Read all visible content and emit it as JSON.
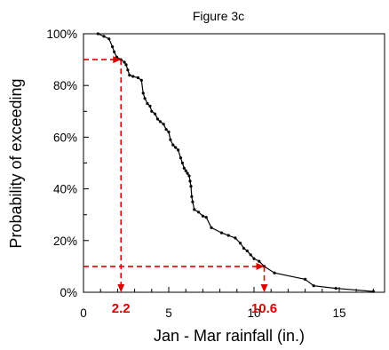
{
  "chart_data": {
    "type": "line",
    "title": "Figure 3c",
    "xlabel": "Jan - Mar rainfall (in.)",
    "ylabel": "Probability of exceeding",
    "xlim": [
      0,
      18
    ],
    "ylim": [
      0,
      100
    ],
    "x_ticks": [
      "0",
      "5",
      "10",
      "15"
    ],
    "y_ticks": [
      "0%",
      "20%",
      "40%",
      "60%",
      "80%",
      "100%"
    ],
    "grid": false,
    "series": [
      {
        "values": [
          [
            0.85,
            100
          ],
          [
            1.2,
            99
          ],
          [
            1.5,
            98
          ],
          [
            1.7,
            95
          ],
          [
            1.8,
            93
          ],
          [
            1.95,
            91
          ],
          [
            2.2,
            90
          ],
          [
            2.4,
            89
          ],
          [
            2.5,
            88
          ],
          [
            2.6,
            86
          ],
          [
            2.7,
            84
          ],
          [
            2.9,
            83.5
          ],
          [
            3.2,
            83
          ],
          [
            3.4,
            82
          ],
          [
            3.5,
            77
          ],
          [
            3.6,
            75
          ],
          [
            3.75,
            73
          ],
          [
            3.9,
            72
          ],
          [
            4.0,
            70
          ],
          [
            4.2,
            69
          ],
          [
            4.35,
            67
          ],
          [
            4.5,
            66
          ],
          [
            4.7,
            65
          ],
          [
            4.85,
            63
          ],
          [
            5.0,
            62
          ],
          [
            5.1,
            59
          ],
          [
            5.25,
            57
          ],
          [
            5.4,
            56
          ],
          [
            5.55,
            55
          ],
          [
            5.7,
            52
          ],
          [
            5.8,
            50
          ],
          [
            5.9,
            48
          ],
          [
            6.0,
            47
          ],
          [
            6.1,
            46
          ],
          [
            6.2,
            45
          ],
          [
            6.25,
            43
          ],
          [
            6.3,
            41
          ],
          [
            6.35,
            37
          ],
          [
            6.4,
            35
          ],
          [
            6.5,
            32
          ],
          [
            6.75,
            31
          ],
          [
            7.0,
            29.5
          ],
          [
            7.2,
            29
          ],
          [
            7.5,
            25
          ],
          [
            8.1,
            23
          ],
          [
            8.5,
            22
          ],
          [
            8.9,
            21
          ],
          [
            9.2,
            19
          ],
          [
            9.4,
            17
          ],
          [
            9.6,
            16
          ],
          [
            9.8,
            14.5
          ],
          [
            10.0,
            13
          ],
          [
            10.3,
            12
          ],
          [
            10.6,
            10
          ],
          [
            11.2,
            7.5
          ],
          [
            13.0,
            5
          ],
          [
            13.5,
            2.5
          ],
          [
            14.8,
            1.5
          ],
          [
            17.0,
            0.3
          ]
        ]
      }
    ],
    "callouts": [
      {
        "label": "2.2",
        "x": 2.2,
        "y": 90
      },
      {
        "label": "10.6",
        "x": 10.6,
        "y": 10
      }
    ],
    "line_color": "#000000",
    "callout_color": "#dd0000"
  }
}
